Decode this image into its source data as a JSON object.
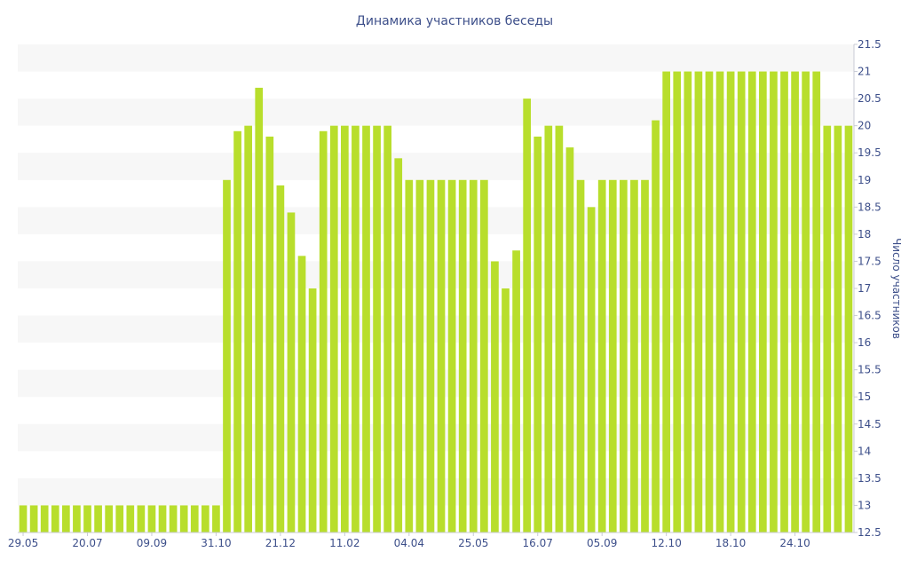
{
  "chart_data": {
    "type": "bar",
    "title": "Динамика участников беседы",
    "xlabel": "",
    "ylabel": "Число участников",
    "ylim": [
      12.5,
      21.5
    ],
    "yticks": [
      12.5,
      13,
      13.5,
      14,
      14.5,
      15,
      15.5,
      16,
      16.5,
      17,
      17.5,
      18,
      18.5,
      19,
      19.5,
      20,
      20.5,
      21,
      21.5
    ],
    "ytick_labels": [
      "12.5",
      "13",
      "13.5",
      "14",
      "14.5",
      "15",
      "15.5",
      "16",
      "16.5",
      "17",
      "17.5",
      "18",
      "18.5",
      "19",
      "19.5",
      "20",
      "20.5",
      "21",
      "21.5"
    ],
    "xtick_labels": [
      {
        "label": "29.05",
        "index": 0
      },
      {
        "label": "20.07",
        "index": 6
      },
      {
        "label": "09.09",
        "index": 12
      },
      {
        "label": "31.10",
        "index": 18
      },
      {
        "label": "21.12",
        "index": 24
      },
      {
        "label": "11.02",
        "index": 30
      },
      {
        "label": "04.04",
        "index": 36
      },
      {
        "label": "25.05",
        "index": 42
      },
      {
        "label": "16.07",
        "index": 48
      },
      {
        "label": "05.09",
        "index": 54
      },
      {
        "label": "12.10",
        "index": 60
      },
      {
        "label": "18.10",
        "index": 66
      },
      {
        "label": "24.10",
        "index": 72
      }
    ],
    "values": [
      13,
      13,
      13,
      13,
      13,
      13,
      13,
      13,
      13,
      13,
      13,
      13,
      13,
      13,
      13,
      13,
      13,
      13,
      13,
      19,
      19.9,
      20,
      20.7,
      19.8,
      18.9,
      18.4,
      17.6,
      17,
      19.9,
      20,
      20,
      20,
      20,
      20,
      20,
      19.4,
      19,
      19,
      19,
      19,
      19,
      19,
      19,
      19,
      17.5,
      17,
      17.7,
      20.5,
      19.8,
      20,
      20,
      19.6,
      19,
      18.5,
      19,
      19,
      19,
      19,
      19,
      20.1,
      21,
      21,
      21,
      21,
      21,
      21,
      21,
      21,
      21,
      21,
      21,
      21,
      21,
      21,
      21,
      20,
      20,
      20
    ],
    "bar_color": "#b8de2c",
    "band_color": "#f7f7f7",
    "grid": true,
    "legend": "none"
  }
}
